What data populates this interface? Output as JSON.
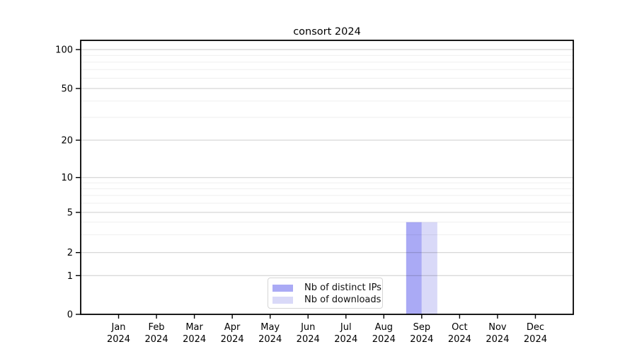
{
  "title": "consort 2024",
  "chart_data": {
    "type": "bar",
    "title": "consort 2024",
    "categories": [
      "Jan",
      "Feb",
      "Mar",
      "Apr",
      "May",
      "Jun",
      "Jul",
      "Aug",
      "Sep",
      "Oct",
      "Nov",
      "Dec"
    ],
    "category_year": "2024",
    "series": [
      {
        "name": "Nb of distinct IPs",
        "color": "#aaaaf5",
        "values": [
          0,
          0,
          0,
          0,
          0,
          0,
          0,
          0,
          4,
          0,
          0,
          0
        ]
      },
      {
        "name": "Nb of downloads",
        "color": "#d9d9f8",
        "values": [
          0,
          0,
          0,
          0,
          0,
          0,
          0,
          0,
          4,
          0,
          0,
          0
        ]
      }
    ],
    "xlabel": "",
    "ylabel": "",
    "yscale": "symlog",
    "y_major_ticks": [
      0,
      1,
      2,
      5,
      10,
      20,
      50,
      100
    ],
    "y_minor_gridlines": [
      3,
      4,
      6,
      7,
      8,
      9,
      30,
      40,
      60,
      70,
      80,
      90
    ],
    "ylim": [
      0,
      120
    ],
    "grid": true,
    "legend_position": "lower center"
  },
  "legend": {
    "items": [
      {
        "label": "Nb of distinct IPs"
      },
      {
        "label": "Nb of downloads"
      }
    ]
  },
  "colors": {
    "bar_distinct_ips": "#aaaaf5",
    "bar_downloads": "#d9d9f8",
    "grid_major": "#cccccc",
    "grid_minor": "#efefef",
    "spine": "#000000",
    "text": "#000000",
    "legend_border": "#d5d5d5",
    "background": "#ffffff"
  }
}
